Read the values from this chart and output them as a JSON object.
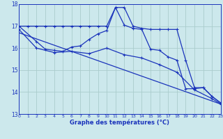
{
  "xlabel": "Graphe des températures (°C)",
  "bg_color": "#cce8ec",
  "line_color": "#1a33bb",
  "grid_color": "#aacccc",
  "ylim": [
    13,
    18
  ],
  "xlim": [
    0,
    23
  ],
  "yticks": [
    13,
    14,
    15,
    16,
    17,
    18
  ],
  "xticks": [
    0,
    1,
    2,
    3,
    4,
    5,
    6,
    7,
    8,
    9,
    10,
    11,
    12,
    13,
    14,
    15,
    16,
    17,
    18,
    19,
    20,
    21,
    22,
    23
  ],
  "series": [
    {
      "x": [
        0,
        1,
        2,
        3,
        4,
        5,
        6,
        7,
        8,
        9,
        10,
        11,
        12,
        13,
        14,
        15,
        16,
        17,
        18,
        19,
        20,
        21,
        22,
        23
      ],
      "y": [
        17.0,
        17.0,
        17.0,
        17.0,
        17.0,
        17.0,
        17.0,
        17.0,
        17.0,
        17.0,
        17.0,
        17.85,
        17.85,
        17.0,
        16.9,
        16.85,
        16.85,
        16.85,
        16.85,
        15.45,
        14.2,
        14.2,
        13.8,
        13.5
      ]
    },
    {
      "x": [
        0,
        2,
        3,
        4,
        5,
        6,
        7,
        8,
        9,
        10,
        11,
        12,
        13,
        14,
        15,
        16,
        17,
        18,
        19,
        20,
        21,
        22,
        23
      ],
      "y": [
        17.0,
        16.3,
        15.95,
        15.9,
        15.85,
        16.05,
        16.1,
        16.4,
        16.65,
        16.8,
        17.85,
        17.05,
        16.9,
        16.85,
        15.95,
        15.9,
        15.6,
        15.45,
        14.15,
        14.15,
        14.2,
        13.8,
        13.5
      ]
    },
    {
      "x": [
        0,
        2,
        4,
        6,
        8,
        10,
        12,
        14,
        16,
        18,
        20,
        22,
        23
      ],
      "y": [
        16.85,
        16.0,
        15.8,
        15.85,
        15.75,
        16.0,
        15.7,
        15.55,
        15.25,
        14.9,
        14.1,
        13.7,
        13.45
      ]
    },
    {
      "x": [
        0,
        23
      ],
      "y": [
        16.7,
        13.45
      ]
    }
  ]
}
